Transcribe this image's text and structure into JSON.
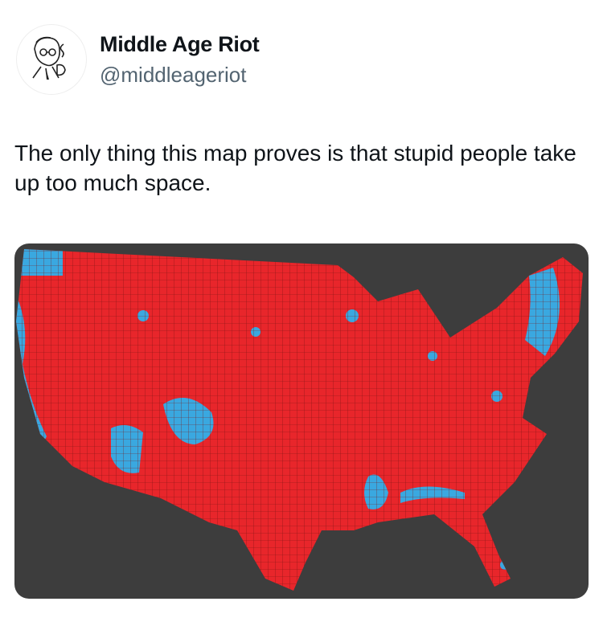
{
  "tweet": {
    "display_name": "Middle Age Riot",
    "handle": "@middleageriot",
    "text": "The only thing this map proves is that stupid people take up too much space.",
    "avatar_icon": "man-with-pipe-illustration"
  },
  "media": {
    "type": "us-county-map",
    "colors": {
      "background": "#3d3d3d",
      "red": "#e8262b",
      "blue": "#3aa8e0",
      "borders": "#5a1010"
    }
  }
}
